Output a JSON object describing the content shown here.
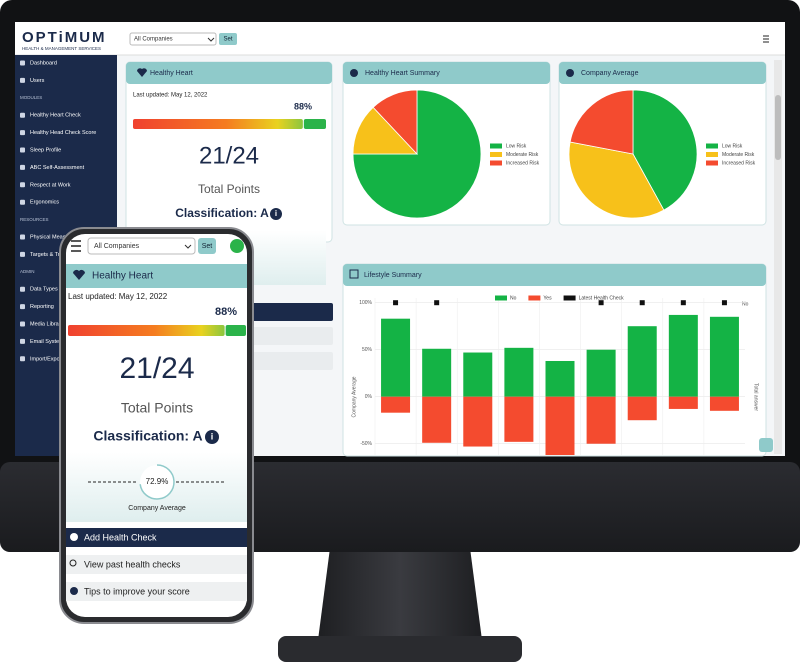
{
  "monitor": {
    "header": {
      "brand": "OPTiMUM",
      "tagline": "HEALTH & MANAGEMENT SERVICES",
      "select": "All Companies",
      "button": "Set"
    },
    "sidebar": [
      {
        "text": "Dashboard"
      },
      {
        "text": "Users"
      },
      {
        "heading": "MODULES"
      },
      {
        "text": "Healthy Heart Check"
      },
      {
        "text": "Healthy Head Check Score"
      },
      {
        "text": "Sleep Profile"
      },
      {
        "text": "ABC Self-Assessment"
      },
      {
        "text": "Respect at Work"
      },
      {
        "text": "Ergonomics"
      },
      {
        "heading": "RESOURCES"
      },
      {
        "text": "Physical Meas"
      },
      {
        "text": "Targets & Tr"
      },
      {
        "heading": "ADMIN"
      },
      {
        "text": "Data Types"
      },
      {
        "text": "Reporting"
      },
      {
        "text": "Media Librar"
      },
      {
        "text": "Email System"
      },
      {
        "text": "Import/Expo"
      }
    ],
    "heart": {
      "title": "Healthy Heart",
      "updated": "Last updated: May 12, 2022",
      "progress": {
        "value": 88,
        "label": "88%"
      },
      "score": "21/24",
      "points": "Total Points",
      "classification": "Classification: A"
    },
    "pies": [
      {
        "type": "pie",
        "title": "Healthy Heart Summary",
        "labels": [
          "Low Risk",
          "Moderate Risk",
          "Increased Risk"
        ],
        "values": [
          75,
          13,
          12
        ],
        "colors": [
          "#14b345",
          "#f7c11a",
          "#f44b2f"
        ]
      },
      {
        "type": "pie",
        "title": "Company Average",
        "labels": [
          "Low Risk",
          "Moderate Risk",
          "Increased Risk"
        ],
        "values": [
          42,
          36,
          22
        ],
        "colors": [
          "#14b345",
          "#f7c11a",
          "#f44b2f"
        ]
      }
    ],
    "lifestyle": {
      "type": "bar",
      "title": "Lifestyle Summary",
      "categories": [
        null,
        null,
        null,
        null,
        null,
        null,
        null,
        null,
        null
      ],
      "series": [
        {
          "name": "No",
          "color": "#14b345",
          "values": [
            83,
            51,
            47,
            52,
            38,
            50,
            75,
            87,
            85
          ]
        },
        {
          "name": "Yes",
          "color": "#f44b2f",
          "values": [
            -17,
            -49,
            -53,
            -48,
            -62,
            -50,
            -25,
            -13,
            -15
          ]
        },
        {
          "name": "Latest Health Check",
          "color": "#111111",
          "values": [
            100,
            100,
            null,
            null,
            null,
            100,
            100,
            100,
            100
          ]
        }
      ],
      "ylim": [
        -62,
        105
      ],
      "yticks": [
        {
          "value": 100,
          "label": "100%"
        },
        {
          "value": 50,
          "label": "50%"
        },
        {
          "value": 0,
          "label": "0%"
        },
        {
          "value": -50,
          "label": "-50%"
        }
      ],
      "ylabel": "Company Average",
      "y2label": "Total answer",
      "y2top": "No",
      "grid": true
    }
  },
  "phone": {
    "select": "All Companies",
    "button": "Set",
    "title": "Healthy Heart",
    "updated": "Last updated: May 12, 2022",
    "progress": {
      "value": 88,
      "label": "88%"
    },
    "score": "21/24",
    "points": "Total Points",
    "classification": "Classification: A",
    "gauge": {
      "value": 72.9,
      "label": "72.9%"
    },
    "gauge_caption": "Company Average",
    "actions": [
      "Add Health Check",
      "View past health checks",
      "Tips to improve your score"
    ]
  }
}
